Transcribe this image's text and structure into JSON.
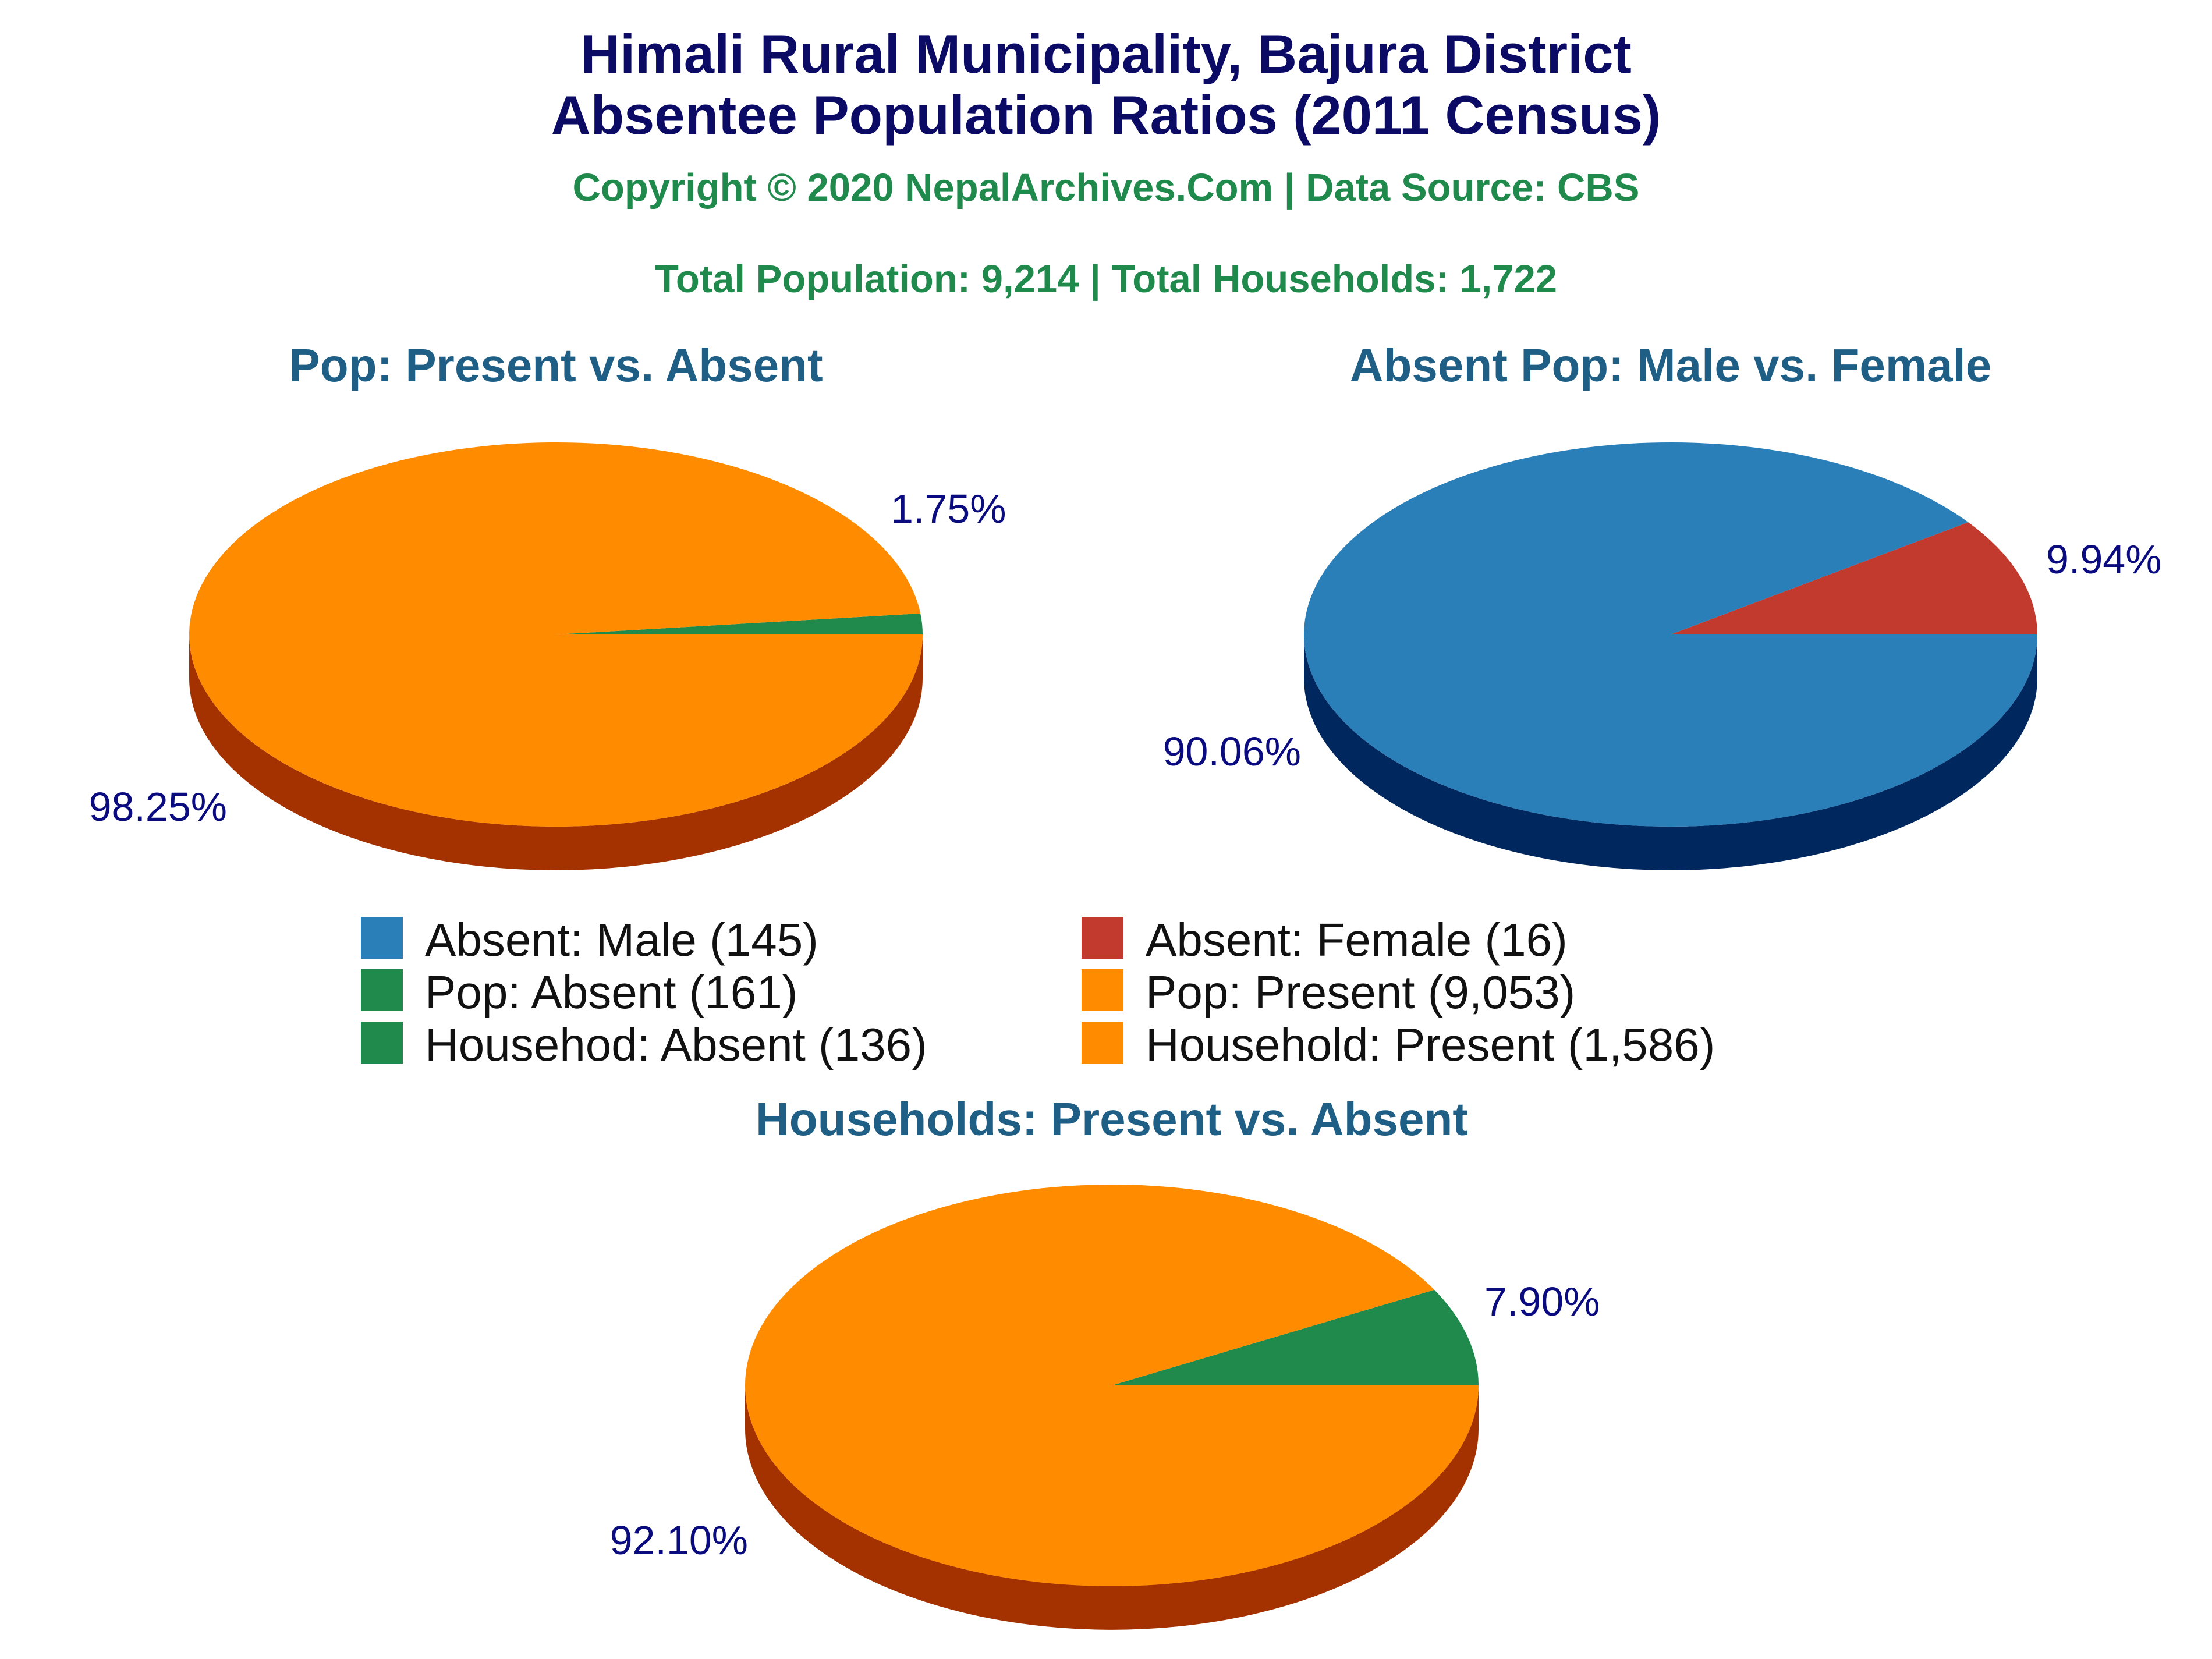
{
  "title_line1": "Himali Rural Municipality, Bajura District",
  "title_line2": "Absentee Population Ratios (2011 Census)",
  "copyright": "Copyright © 2020 NepalArchives.Com | Data Source: CBS",
  "totals": "Total Population: 9,214 | Total Households: 1,722",
  "colors": {
    "orange": "#ff8c00",
    "orange_side": "#a33200",
    "green": "#1f8a4c",
    "blue": "#2a7fb9",
    "blue_side": "#00275e",
    "red": "#c23a2e"
  },
  "chart_data": [
    {
      "type": "pie",
      "title": "Pop: Present vs. Absent",
      "slices": [
        {
          "name": "Pop: Absent",
          "value": 161,
          "percent": 1.75,
          "label": "1.75%"
        },
        {
          "name": "Pop: Present",
          "value": 9053,
          "percent": 98.25,
          "label": "98.25%"
        }
      ]
    },
    {
      "type": "pie",
      "title": "Absent Pop: Male vs. Female",
      "slices": [
        {
          "name": "Absent: Female",
          "value": 16,
          "percent": 9.94,
          "label": "9.94%"
        },
        {
          "name": "Absent: Male",
          "value": 145,
          "percent": 90.06,
          "label": "90.06%"
        }
      ]
    },
    {
      "type": "pie",
      "title": "Households: Present vs. Absent",
      "slices": [
        {
          "name": "Househod: Absent",
          "value": 136,
          "percent": 7.9,
          "label": "7.90%"
        },
        {
          "name": "Household: Present",
          "value": 1586,
          "percent": 92.1,
          "label": "92.10%"
        }
      ]
    }
  ],
  "legend": [
    {
      "label": "Absent: Male (145)",
      "color": "#2a7fb9"
    },
    {
      "label": "Absent: Female (16)",
      "color": "#c23a2e"
    },
    {
      "label": "Pop: Absent (161)",
      "color": "#1f8a4c"
    },
    {
      "label": "Pop: Present (9,053)",
      "color": "#ff8c00"
    },
    {
      "label": "Househod: Absent (136)",
      "color": "#1f8a4c"
    },
    {
      "label": "Household: Present (1,586)",
      "color": "#ff8c00"
    }
  ]
}
